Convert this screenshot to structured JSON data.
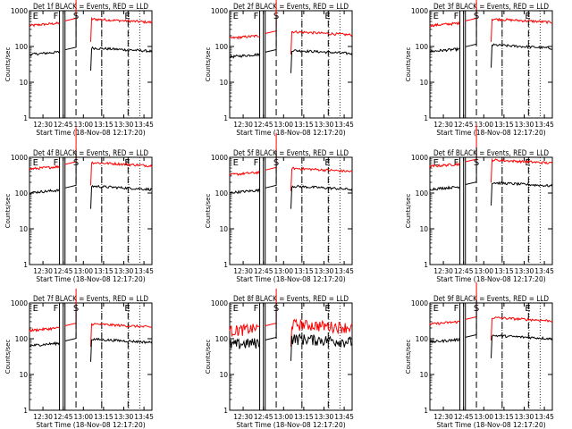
{
  "figure": {
    "background": "#ffffff",
    "event_color": "#000000",
    "lld_color": "#ff0000"
  },
  "chart_data": [
    {
      "type": "line",
      "title": "Det 1f BLACK = Events, RED = LLD",
      "xlabel": "Start Time (18-Nov-08 12:17:20)",
      "ylabel": "Counts/sec",
      "ylim": [
        1,
        1000
      ],
      "yscale": "log",
      "yticks": [
        "1",
        "10",
        "100",
        "1000"
      ],
      "xticks": [
        "12:30",
        "12:45",
        "13:00",
        "13:15",
        "13:30",
        "13:45"
      ],
      "marker_letters": [
        "E",
        "F",
        "S",
        "E"
      ],
      "series": [
        {
          "color": "#ff0000",
          "level": 450
        },
        {
          "color": "#000000",
          "level": 70
        }
      ]
    },
    {
      "type": "line",
      "title": "Det 2f BLACK = Events, RED = LLD",
      "xlabel": "Start Time (18-Nov-08 12:17:20)",
      "ylabel": "Counts/sec",
      "ylim": [
        1,
        1000
      ],
      "yscale": "log",
      "yticks": [
        "1",
        "10",
        "100",
        "1000"
      ],
      "xticks": [
        "12:30",
        "12:45",
        "13:00",
        "13:15",
        "13:30",
        "13:45"
      ],
      "marker_letters": [
        "E",
        "F",
        "S",
        "E"
      ],
      "series": [
        {
          "color": "#ff0000",
          "level": 200
        },
        {
          "color": "#000000",
          "level": 60
        }
      ]
    },
    {
      "type": "line",
      "title": "Det 3f BLACK = Events, RED = LLD",
      "xlabel": "Start Time (18-Nov-08 12:17:20)",
      "ylabel": "Counts/sec",
      "ylim": [
        1,
        1000
      ],
      "yscale": "log",
      "yticks": [
        "1",
        "10",
        "100",
        "1000"
      ],
      "xticks": [
        "12:30",
        "12:45",
        "13:00",
        "13:15",
        "13:30",
        "13:45"
      ],
      "marker_letters": [
        "E",
        "F",
        "S",
        "E"
      ],
      "series": [
        {
          "color": "#ff0000",
          "level": 450
        },
        {
          "color": "#000000",
          "level": 85
        }
      ]
    },
    {
      "type": "line",
      "title": "Det 4f BLACK = Events, RED = LLD",
      "xlabel": "Start Time (18-Nov-08 12:17:20)",
      "ylabel": "Counts/sec",
      "ylim": [
        1,
        1000
      ],
      "yscale": "log",
      "yticks": [
        "1",
        "10",
        "100",
        "1000"
      ],
      "xticks": [
        "12:30",
        "12:45",
        "13:00",
        "13:15",
        "13:30",
        "13:45"
      ],
      "marker_letters": [
        "E",
        "F",
        "S",
        "E"
      ],
      "series": [
        {
          "color": "#ff0000",
          "level": 550
        },
        {
          "color": "#000000",
          "level": 120
        }
      ]
    },
    {
      "type": "line",
      "title": "Det 5f BLACK = Events, RED = LLD",
      "xlabel": "Start Time (18-Nov-08 12:17:20)",
      "ylabel": "Counts/sec",
      "ylim": [
        1,
        1000
      ],
      "yscale": "log",
      "yticks": [
        "1",
        "10",
        "100",
        "1000"
      ],
      "xticks": [
        "12:30",
        "12:45",
        "13:00",
        "13:15",
        "13:30",
        "13:45"
      ],
      "marker_letters": [
        "E",
        "F",
        "S",
        "E"
      ],
      "series": [
        {
          "color": "#ff0000",
          "level": 380
        },
        {
          "color": "#000000",
          "level": 120
        }
      ]
    },
    {
      "type": "line",
      "title": "Det 6f BLACK = Events, RED = LLD",
      "xlabel": "Start Time (18-Nov-08 12:17:20)",
      "ylabel": "Counts/sec",
      "ylim": [
        1,
        1000
      ],
      "yscale": "log",
      "yticks": [
        "1",
        "10",
        "100",
        "1000"
      ],
      "xticks": [
        "12:30",
        "12:45",
        "13:00",
        "13:15",
        "13:30",
        "13:45"
      ],
      "marker_letters": [
        "E",
        "F",
        "S",
        "E"
      ],
      "series": [
        {
          "color": "#ff0000",
          "level": 650
        },
        {
          "color": "#000000",
          "level": 150
        }
      ]
    },
    {
      "type": "line",
      "title": "Det 7f BLACK = Events, RED = LLD",
      "xlabel": "Start Time (18-Nov-08 12:17:20)",
      "ylabel": "Counts/sec",
      "ylim": [
        1,
        1000
      ],
      "yscale": "log",
      "yticks": [
        "1",
        "10",
        "100",
        "1000"
      ],
      "xticks": [
        "12:30",
        "12:45",
        "13:00",
        "13:15",
        "13:30",
        "13:45"
      ],
      "marker_letters": [
        "E",
        "F",
        "S",
        "E"
      ],
      "series": [
        {
          "color": "#ff0000",
          "level": 200
        },
        {
          "color": "#000000",
          "level": 75
        }
      ]
    },
    {
      "type": "line",
      "title": "Det 8f BLACK = Events, RED = LLD",
      "xlabel": "Start Time (18-Nov-08 12:17:20)",
      "ylabel": "Counts/sec",
      "ylim": [
        1,
        1000
      ],
      "yscale": "log",
      "yticks": [
        "1",
        "10",
        "100",
        "1000"
      ],
      "xticks": [
        "12:30",
        "12:45",
        "13:00",
        "13:15",
        "13:30",
        "13:45"
      ],
      "marker_letters": [
        "E",
        "F",
        "S",
        "E"
      ],
      "series": [
        {
          "color": "#ff0000",
          "level": 200
        },
        {
          "color": "#000000",
          "level": 80
        }
      ]
    },
    {
      "type": "line",
      "title": "Det 9f BLACK = Events, RED = LLD",
      "xlabel": "Start Time (18-Nov-08 12:17:20)",
      "ylabel": "Counts/sec",
      "ylim": [
        1,
        1000
      ],
      "yscale": "log",
      "yticks": [
        "1",
        "10",
        "100",
        "1000"
      ],
      "xticks": [
        "12:30",
        "12:45",
        "13:00",
        "13:15",
        "13:30",
        "13:45"
      ],
      "marker_letters": [
        "E",
        "F",
        "S",
        "E"
      ],
      "series": [
        {
          "color": "#ff0000",
          "level": 300
        },
        {
          "color": "#000000",
          "level": 95
        }
      ]
    }
  ]
}
